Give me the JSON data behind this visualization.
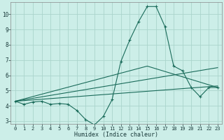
{
  "xlabel": "Humidex (Indice chaleur)",
  "bg_color": "#cceee8",
  "grid_color": "#aad4cc",
  "line_color": "#1a6b5a",
  "xlim": [
    -0.5,
    23.5
  ],
  "ylim": [
    2.8,
    10.8
  ],
  "yticks": [
    3,
    4,
    5,
    6,
    7,
    8,
    9,
    10
  ],
  "xticks": [
    0,
    1,
    2,
    3,
    4,
    5,
    6,
    7,
    8,
    9,
    10,
    11,
    12,
    13,
    14,
    15,
    16,
    17,
    18,
    19,
    20,
    21,
    22,
    23
  ],
  "line1_x": [
    0,
    1,
    2,
    3,
    4,
    5,
    6,
    7,
    8,
    9,
    10,
    11,
    12,
    13,
    14,
    15,
    16,
    17,
    18,
    19,
    20,
    21,
    22,
    23
  ],
  "line1_y": [
    4.3,
    4.1,
    4.25,
    4.3,
    4.1,
    4.15,
    4.1,
    3.7,
    3.1,
    2.75,
    3.3,
    4.4,
    6.9,
    8.3,
    9.5,
    10.5,
    10.5,
    9.2,
    6.6,
    6.3,
    5.2,
    4.6,
    5.2,
    5.2
  ],
  "line2_x": [
    0,
    23
  ],
  "line2_y": [
    4.3,
    6.5
  ],
  "line3_x": [
    0,
    23
  ],
  "line3_y": [
    4.3,
    5.3
  ],
  "line4_x": [
    0,
    15,
    23
  ],
  "line4_y": [
    4.3,
    6.6,
    5.2
  ]
}
